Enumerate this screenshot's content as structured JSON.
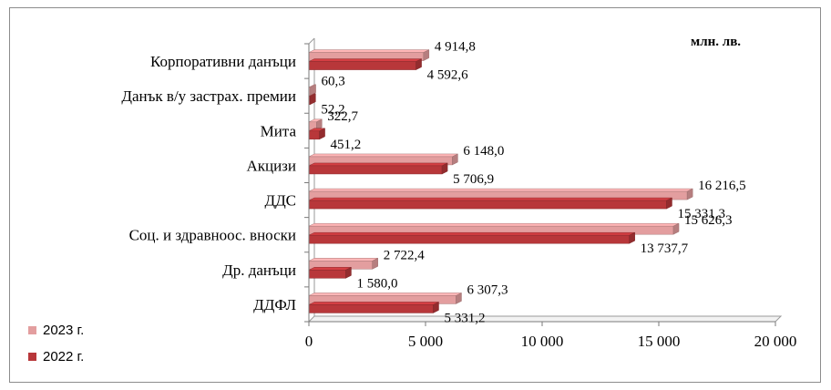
{
  "chart_data": {
    "type": "bar",
    "orientation": "horizontal",
    "unit": "млн. лв.",
    "categories": [
      "Корпоративни данъци",
      "Данък в/у застрах. премии",
      "Мита",
      "Акцизи",
      "ДДС",
      "Соц. и здравноос. вноски",
      "Др. данъци",
      "ДДФЛ"
    ],
    "series": [
      {
        "name": "2023 г.",
        "color": "#e39e9f",
        "values": [
          4914.8,
          60.3,
          322.7,
          6148.0,
          16216.5,
          15626.3,
          2722.4,
          6307.3
        ],
        "labels": [
          "4 914,8",
          "60,3",
          "322,7",
          "6 148,0",
          "16 216,5",
          "15 626,3",
          "2 722,4",
          "6 307,3"
        ]
      },
      {
        "name": "2022 г.",
        "color": "#b8373a",
        "values": [
          4592.6,
          52.2,
          451.2,
          5706.9,
          15331.3,
          13737.7,
          1580.0,
          5331.2
        ],
        "labels": [
          "4 592,6",
          "52,2",
          "451,2",
          "5 706,9",
          "15 331,3",
          "13 737,7",
          "1 580,0",
          "5 331,2"
        ]
      }
    ],
    "xlim": [
      0,
      20000
    ],
    "xticks": [
      0,
      5000,
      10000,
      15000,
      20000
    ],
    "xtick_labels": [
      "0",
      "5 000",
      "10 000",
      "15 000",
      "20 000"
    ],
    "grid": false,
    "legend_position": "bottom-left"
  }
}
